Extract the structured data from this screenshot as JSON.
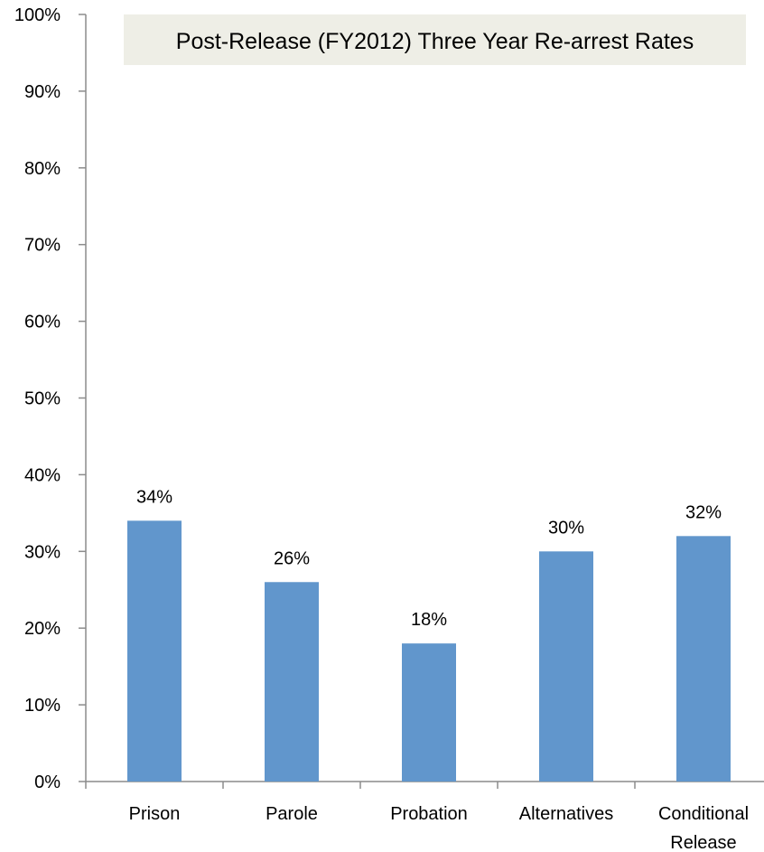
{
  "chart_data": {
    "type": "bar",
    "title": "Post-Release (FY2012) Three Year Re-arrest Rates",
    "categories": [
      [
        "Prison"
      ],
      [
        "Parole"
      ],
      [
        "Probation"
      ],
      [
        "Alternatives"
      ],
      [
        "Conditional",
        "Release"
      ]
    ],
    "values": [
      34,
      26,
      18,
      30,
      32
    ],
    "value_labels": [
      "34%",
      "26%",
      "18%",
      "30%",
      "32%"
    ],
    "ylim": [
      0,
      100
    ],
    "yticks": [
      0,
      10,
      20,
      30,
      40,
      50,
      60,
      70,
      80,
      90,
      100
    ],
    "ytick_labels": [
      "0%",
      "10%",
      "20%",
      "30%",
      "40%",
      "50%",
      "60%",
      "70%",
      "80%",
      "90%",
      "100%"
    ],
    "grid": false,
    "legend": "none",
    "colors": {
      "bar": "#6196CC",
      "title_box": "#EEEEE6",
      "axis": "#8C8C8C"
    }
  }
}
